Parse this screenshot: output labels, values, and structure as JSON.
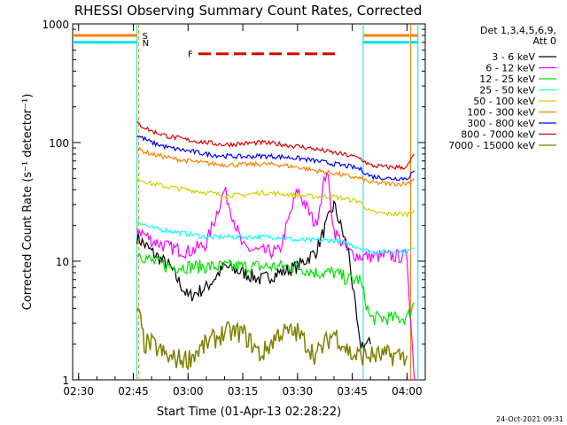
{
  "chart_data": {
    "type": "line",
    "title": "RHESSI Observing Summary Count Rates, Corrected",
    "xlabel": "Start Time (01-Apr-13 02:28:22)",
    "ylabel": "Corrected Count Rate (s⁻¹ detector⁻¹)",
    "yscale": "log",
    "ylim": [
      1,
      1000
    ],
    "xlim_minutes_after_start_label": "02:28:22 to 04:05",
    "x_ticks": [
      "02:30",
      "02:45",
      "03:00",
      "03:15",
      "03:30",
      "03:45",
      "04:00"
    ],
    "y_ticks": [
      "1",
      "10",
      "100",
      "1000"
    ],
    "legend_header": [
      "Det 1,3,4,5,6,9,",
      "Att 0"
    ],
    "legend_position": "top-right",
    "series": [
      {
        "name": "3 - 6 keV",
        "color": "#000000",
        "x": [
          "02:46",
          "02:50",
          "02:55",
          "03:00",
          "03:05",
          "03:10",
          "03:15",
          "03:20",
          "03:25",
          "03:30",
          "03:35",
          "03:40",
          "03:44",
          "03:47",
          "03:50"
        ],
        "values": [
          16,
          12,
          9,
          5,
          6,
          9,
          8,
          7,
          8,
          9,
          12,
          30,
          12,
          2,
          2
        ]
      },
      {
        "name": "6 - 12 keV",
        "color": "#ff00ff",
        "x": [
          "02:46",
          "02:50",
          "02:55",
          "03:00",
          "03:05",
          "03:10",
          "03:15",
          "03:20",
          "03:25",
          "03:30",
          "03:35",
          "03:38",
          "03:40",
          "03:44",
          "03:47",
          "03:50",
          "03:55",
          "04:00",
          "04:02"
        ],
        "values": [
          19,
          15,
          13,
          12,
          14,
          40,
          13,
          12,
          12,
          40,
          20,
          60,
          18,
          12,
          11,
          11,
          11,
          11,
          1
        ]
      },
      {
        "name": "12 - 25 keV",
        "color": "#00e000",
        "x": [
          "02:46",
          "02:50",
          "02:55",
          "03:00",
          "03:05",
          "03:10",
          "03:15",
          "03:20",
          "03:25",
          "03:30",
          "03:35",
          "03:40",
          "03:44",
          "03:47",
          "03:50",
          "03:55",
          "04:00",
          "04:02"
        ],
        "values": [
          12,
          10,
          9,
          9,
          9,
          9,
          9,
          9,
          9,
          9,
          8,
          8,
          7,
          7,
          3.3,
          3.3,
          3.3,
          4.5
        ]
      },
      {
        "name": "25 - 50 keV",
        "color": "#00ffff",
        "x": [
          "02:46",
          "02:50",
          "02:55",
          "03:00",
          "03:05",
          "03:10",
          "03:15",
          "03:20",
          "03:25",
          "03:30",
          "03:35",
          "03:40",
          "03:44",
          "03:47",
          "03:50",
          "03:55",
          "04:00",
          "04:02"
        ],
        "values": [
          22,
          19,
          18,
          17,
          16,
          16,
          16,
          16,
          16,
          15,
          15,
          15,
          14,
          13,
          12,
          12,
          12,
          13
        ]
      },
      {
        "name": "50 - 100 keV",
        "color": "#d0d000",
        "x": [
          "02:46",
          "02:50",
          "02:55",
          "03:00",
          "03:05",
          "03:10",
          "03:15",
          "03:20",
          "03:25",
          "03:30",
          "03:35",
          "03:40",
          "03:44",
          "03:47",
          "03:50",
          "03:55",
          "04:00",
          "04:02"
        ],
        "values": [
          50,
          45,
          42,
          40,
          38,
          36,
          36,
          38,
          37,
          36,
          35,
          35,
          33,
          32,
          26,
          25,
          25,
          27
        ]
      },
      {
        "name": "100 - 300 keV",
        "color": "#ff8000",
        "x": [
          "02:46",
          "02:50",
          "02:55",
          "03:00",
          "03:05",
          "03:10",
          "03:15",
          "03:20",
          "03:25",
          "03:30",
          "03:35",
          "03:40",
          "03:44",
          "03:47",
          "03:50",
          "03:55",
          "04:00",
          "04:02"
        ],
        "values": [
          88,
          80,
          74,
          70,
          67,
          65,
          65,
          66,
          65,
          62,
          58,
          55,
          52,
          50,
          46,
          45,
          45,
          50
        ]
      },
      {
        "name": "300 - 800 keV",
        "color": "#0000ff",
        "x": [
          "02:46",
          "02:50",
          "02:55",
          "03:00",
          "03:05",
          "03:10",
          "03:15",
          "03:20",
          "03:25",
          "03:30",
          "03:35",
          "03:40",
          "03:44",
          "03:47",
          "03:50",
          "03:55",
          "04:00",
          "04:02"
        ],
        "values": [
          115,
          100,
          90,
          85,
          80,
          77,
          76,
          77,
          76,
          74,
          70,
          66,
          63,
          60,
          52,
          50,
          50,
          58
        ]
      },
      {
        "name": "800 - 7000 keV",
        "color": "#e00000",
        "x": [
          "02:46",
          "02:50",
          "02:55",
          "03:00",
          "03:05",
          "03:10",
          "03:15",
          "03:20",
          "03:25",
          "03:30",
          "03:35",
          "03:40",
          "03:44",
          "03:47",
          "03:50",
          "03:55",
          "04:00",
          "04:02"
        ],
        "values": [
          145,
          125,
          112,
          105,
          100,
          96,
          98,
          100,
          97,
          93,
          88,
          82,
          78,
          74,
          64,
          62,
          62,
          80
        ]
      },
      {
        "name": "7000 - 15000 keV",
        "color": "#808000",
        "x": [
          "02:46",
          "02:47",
          "02:48",
          "02:50",
          "02:55",
          "03:00",
          "03:05",
          "03:10",
          "03:15",
          "03:20",
          "03:25",
          "03:30",
          "03:35",
          "03:40",
          "03:45",
          "03:50",
          "03:55",
          "04:00"
        ],
        "values": [
          4,
          3,
          2,
          2,
          1.5,
          1.5,
          2,
          2.5,
          2.5,
          1.6,
          2.5,
          2.5,
          1.6,
          2.5,
          1.6,
          1.6,
          1.6,
          1.6
        ]
      }
    ],
    "annotations": [
      {
        "label": "S",
        "color": "#ff8000",
        "value_y": 800
      },
      {
        "label": "N",
        "color": "#00e0e0",
        "value_y": 700
      },
      {
        "label": "F",
        "color": "#e00000",
        "value_y": 560
      }
    ],
    "footer_date": "24-Oct-2021 09:31"
  }
}
